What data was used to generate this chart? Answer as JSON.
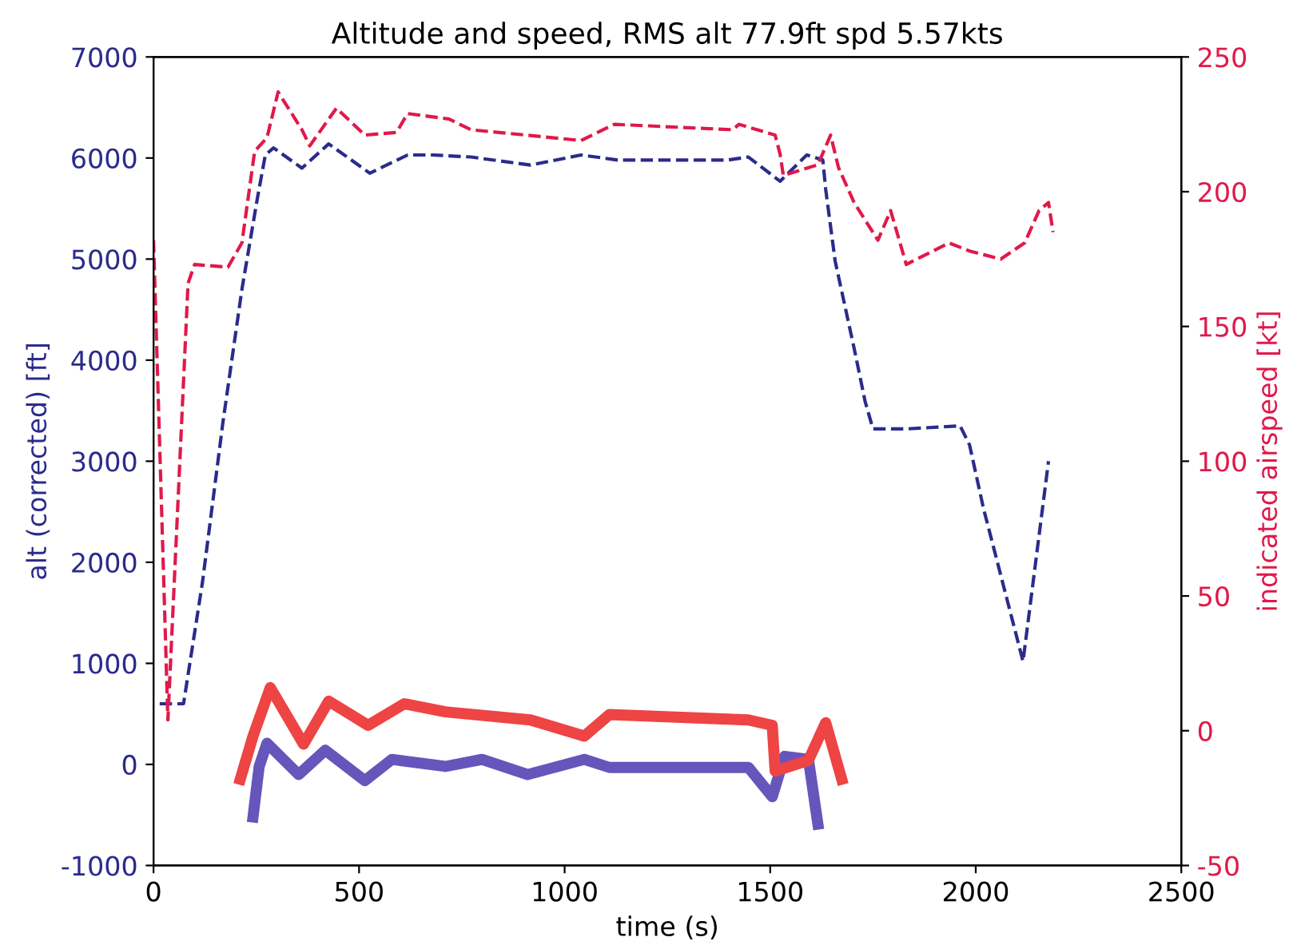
{
  "chart_data": {
    "type": "line",
    "title": "Altitude and speed, RMS alt 77.9ft spd 5.57kts",
    "xlabel": "time (s)",
    "ylabel": "alt (corrected) [ft]",
    "y2label": "indicated airspeed [kt]",
    "xlim": [
      0,
      2500
    ],
    "xticks": [
      0,
      500,
      1000,
      1500,
      2000,
      2500
    ],
    "ylim": [
      -1000,
      7000
    ],
    "yticks": [
      -1000,
      0,
      1000,
      2000,
      3000,
      4000,
      5000,
      6000,
      7000
    ],
    "y2lim": [
      -50,
      250
    ],
    "y2ticks": [
      -50,
      0,
      50,
      100,
      150,
      200,
      250
    ],
    "grid": false,
    "legend": false,
    "series": [
      {
        "color": "#2b2b8c",
        "line_style": "dashed",
        "x": [
          15,
          73,
          119,
          169,
          215,
          253,
          272,
          292,
          361,
          426,
          526,
          618,
          679,
          772,
          917,
          1040,
          1129,
          1397,
          1447,
          1524,
          1589,
          1628,
          1635,
          1658,
          1704,
          1731,
          1750,
          1831,
          1962,
          1985,
          2019,
          2115,
          2177
        ],
        "values": [
          600,
          600,
          1800,
          3390,
          4700,
          5610,
          6030,
          6100,
          5900,
          6140,
          5850,
          6030,
          6030,
          6010,
          5930,
          6030,
          5980,
          5980,
          6010,
          5770,
          6030,
          5980,
          5690,
          4980,
          4120,
          3590,
          3320,
          3320,
          3350,
          3160,
          2530,
          1020,
          3000
        ]
      },
      {
        "color": "#e0194a",
        "line_style": "dashed",
        "axis": "y2",
        "x": [
          0,
          35,
          84,
          100,
          181,
          215,
          246,
          276,
          303,
          361,
          380,
          445,
          514,
          591,
          618,
          718,
          772,
          1040,
          1121,
          1409,
          1424,
          1512,
          1524,
          1532,
          1616,
          1647,
          1666,
          1704,
          1762,
          1793,
          1831,
          1935,
          1985,
          2061,
          2119,
          2154,
          2177,
          2188
        ],
        "values": [
          182,
          4,
          166,
          173,
          172,
          181,
          215,
          220,
          237,
          223,
          217,
          231,
          221,
          222,
          229,
          227,
          223,
          219,
          225,
          223,
          225,
          221,
          214,
          206,
          210,
          221,
          209,
          196,
          182,
          193,
          173,
          181,
          178,
          175,
          181,
          193,
          196,
          185
        ]
      },
      {
        "color": "#6655bb",
        "line_style": "solid",
        "x": [
          242,
          257,
          276,
          353,
          418,
          514,
          580,
          710,
          799,
          910,
          1048,
          1109,
          1447,
          1505,
          1535,
          1593,
          1616
        ],
        "values": [
          -520,
          -20,
          210,
          -100,
          140,
          -160,
          50,
          -20,
          50,
          -100,
          50,
          -30,
          -30,
          -320,
          80,
          50,
          -590
        ]
      },
      {
        "color": "#ee4444",
        "line_style": "solid",
        "axis": "y2",
        "x": [
          211,
          242,
          284,
          365,
          426,
          522,
          610,
          710,
          917,
          1048,
          1109,
          1447,
          1505,
          1512,
          1593,
          1635,
          1674
        ],
        "values": [
          -18,
          -2,
          16,
          -5,
          11,
          2,
          10,
          7,
          4,
          -2,
          6,
          4,
          2,
          -15,
          -11,
          3,
          -18
        ]
      }
    ]
  }
}
